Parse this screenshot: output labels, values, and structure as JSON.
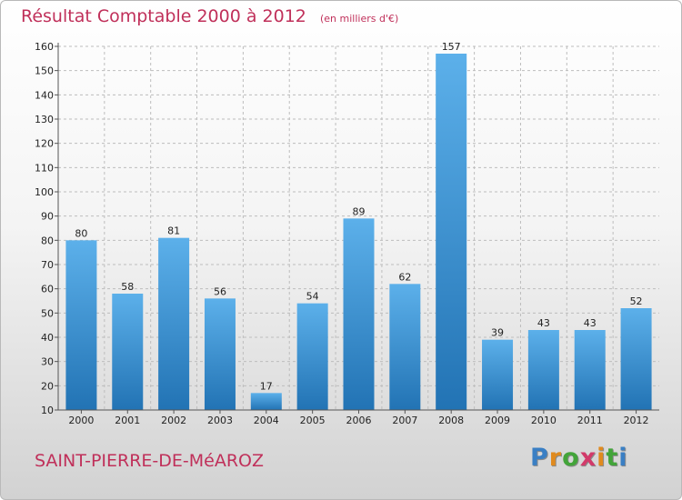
{
  "header": {
    "title": "Résultat Comptable 2000 à 2012",
    "subtitle": "(en milliers d'€)"
  },
  "footer": {
    "commune": "SAINT-PIERRE-DE-MéAROZ",
    "logo": {
      "text": "Proxiti",
      "letters": [
        "P",
        "r",
        "o",
        "x",
        "i",
        "t",
        "i"
      ],
      "letter_colors": [
        "#3a7fc4",
        "#e08a1e",
        "#43a43a",
        "#d23a6a",
        "#e08a1e",
        "#43a43a",
        "#3a7fc4"
      ]
    }
  },
  "colors": {
    "bar_top": "#5cb0ea",
    "bar_bottom": "#2273b4",
    "grid": "#bdbdbd",
    "accent": "#c0305a"
  },
  "chart_data": {
    "type": "bar",
    "title": "Résultat Comptable 2000 à 2012",
    "subtitle": "(en milliers d'€)",
    "xlabel": "",
    "ylabel": "",
    "categories": [
      "2000",
      "2001",
      "2002",
      "2003",
      "2004",
      "2005",
      "2006",
      "2007",
      "2008",
      "2009",
      "2010",
      "2011",
      "2012"
    ],
    "values": [
      80,
      58,
      81,
      56,
      17,
      54,
      89,
      62,
      157,
      39,
      43,
      43,
      52
    ],
    "ylim": [
      10,
      160
    ],
    "yticks": [
      10,
      20,
      30,
      40,
      50,
      60,
      70,
      80,
      90,
      100,
      110,
      120,
      130,
      140,
      150,
      160
    ],
    "grid": true,
    "data_labels": true
  }
}
